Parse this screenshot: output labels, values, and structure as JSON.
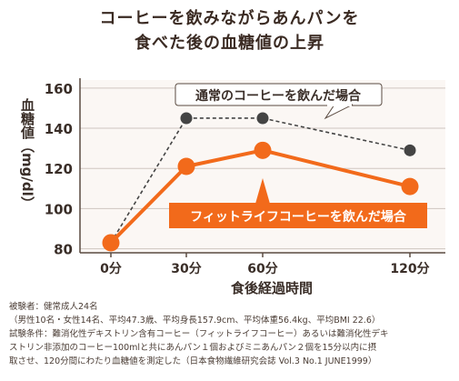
{
  "title": {
    "line1": "コーヒーを飲みながらあんパンを",
    "line2": "食べた後の血糖値の上昇"
  },
  "chart_data": {
    "type": "line",
    "ylabel": "血糖値（mg/dl）",
    "xlabel": "食後経過時間",
    "x": [
      0,
      30,
      60,
      120
    ],
    "categories": [
      "0分",
      "30分",
      "60分",
      "120分"
    ],
    "ylim": [
      78,
      164
    ],
    "yticks": [
      80,
      100,
      120,
      140,
      160
    ],
    "grid": "horizontal",
    "series": [
      {
        "name": "通常のコーヒーを飲んだ場合",
        "values": [
          83,
          145,
          145,
          129
        ],
        "color": "#444444",
        "style": "dashed"
      },
      {
        "name": "フィットライフコーヒーを飲んだ場合",
        "values": [
          83,
          121,
          129,
          111
        ],
        "color": "#f26a1b",
        "style": "solid"
      }
    ],
    "colors": {
      "axis": "#5a4a40",
      "grid": "#cfc6c0",
      "plot_bg": "#fbf7f4",
      "orange": "#f26a1b",
      "gray": "#444444"
    }
  },
  "notes": {
    "subjects": "被験者：健常成人24名",
    "subjects_detail": "（男性10名・女性14名、平均47.3歳、平均身長157.9cm、平均体重56.4kg、平均BMI 22.6）",
    "conditions_1": "試験条件：難消化性デキストリン含有コーヒー（フィットライフコーヒー）あるいは難消化性デキ",
    "conditions_2": "ストリン非添加のコーヒー100mlと共にあんパン１個およびミニあんパン２個を15分以内に摂",
    "conditions_3": "取させ、120分間にわたり血糖値を測定した（日本食物繊維研究会誌 Vol.3 No.1 JUNE1999）"
  }
}
